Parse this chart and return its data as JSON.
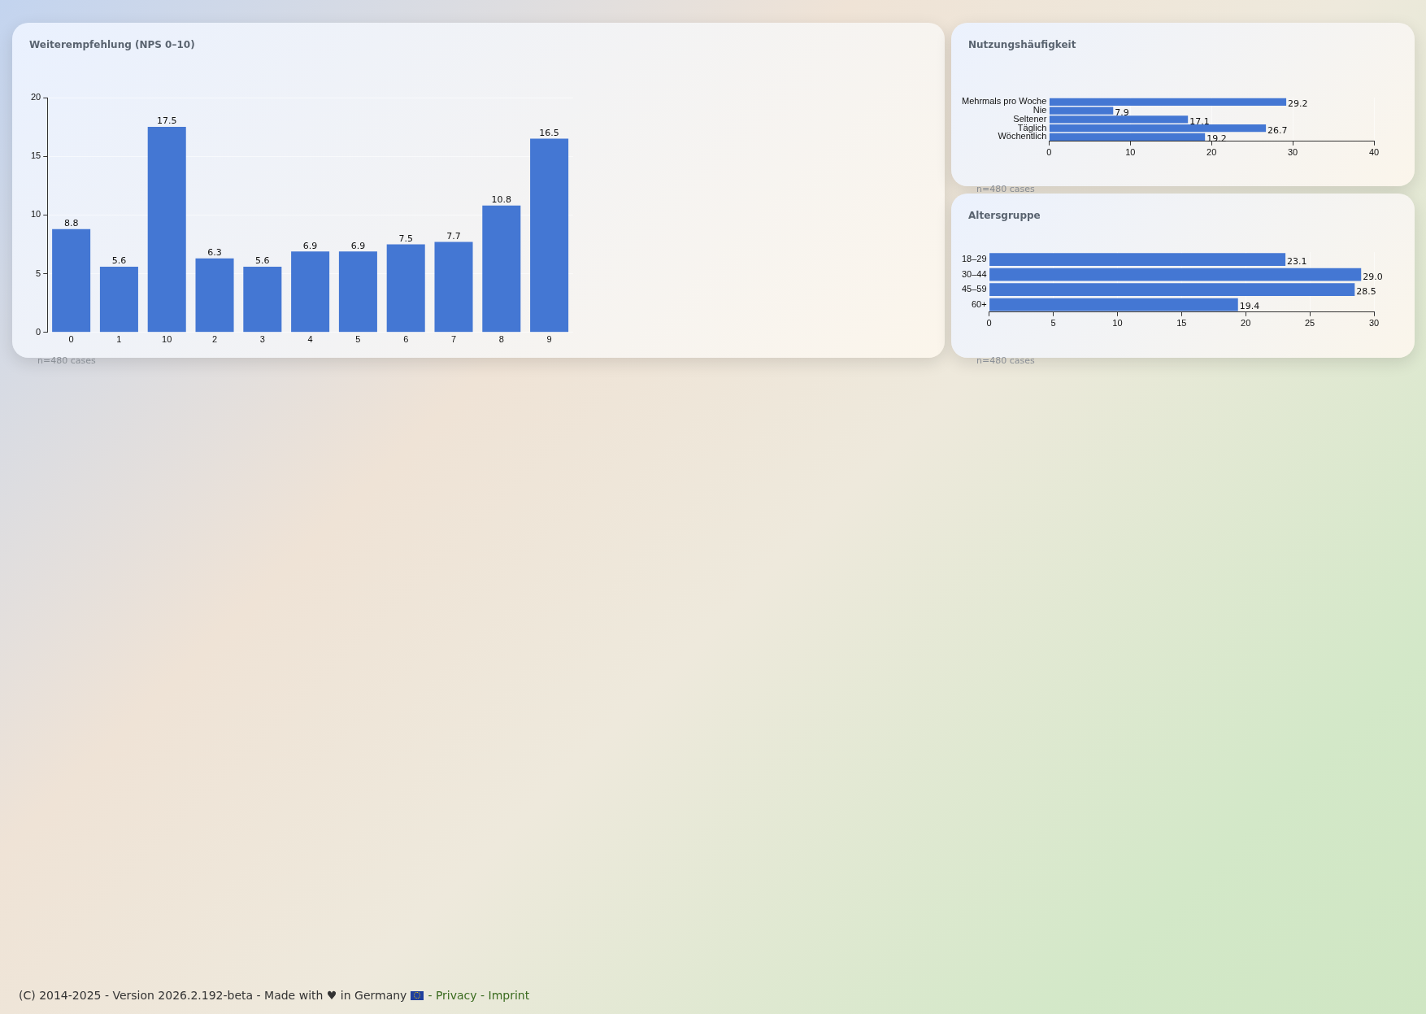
{
  "chart_data": [
    {
      "type": "bar",
      "title": "Weiterempfehlung (NPS 0–10)",
      "categories": [
        "0",
        "1",
        "10",
        "2",
        "3",
        "4",
        "5",
        "6",
        "7",
        "8",
        "9"
      ],
      "values": [
        8.8,
        5.6,
        17.5,
        6.3,
        5.6,
        6.9,
        6.9,
        7.5,
        7.7,
        10.8,
        16.5
      ],
      "color": "#4477d3",
      "ylim": [
        0,
        20
      ],
      "yticks": [
        0,
        5,
        10,
        15,
        20
      ],
      "grid": "y",
      "data_labels": true,
      "annotations": [
        "n=480 cases",
        "(C) 2014-2025 - Version 2026.2.192-beta - Made with ♥ in Germany",
        "- Privacy - Imprint"
      ]
    },
    {
      "type": "bar",
      "orientation": "horizontal",
      "title": "Nutzungshäufigkeit",
      "categories": [
        "Mehrmals pro Woche",
        "Nie",
        "Seltener",
        "Täglich",
        "Wöchentlich"
      ],
      "values": [
        29.2,
        7.9,
        17.1,
        26.7,
        19.2
      ],
      "color": "#4477d3",
      "xlim": [
        0,
        40
      ],
      "xticks": [
        0,
        10,
        20,
        30,
        40
      ],
      "grid": "x",
      "data_labels": true,
      "annotations": [
        "n=480 cases"
      ]
    },
    {
      "type": "bar",
      "orientation": "horizontal",
      "title": "Altersgruppe",
      "categories": [
        "18–29",
        "30–44",
        "45–59",
        "60+"
      ],
      "values": [
        23.1,
        29.0,
        28.5,
        19.4
      ],
      "value_labels": [
        "23.1",
        "29.0",
        "28.5",
        "19.4"
      ],
      "color": "#4477d3",
      "xlim": [
        0,
        30
      ],
      "xticks": [
        0,
        5,
        10,
        15,
        20,
        25,
        30
      ],
      "grid": "x",
      "annotations": [
        "n=480 cases"
      ]
    }
  ]
}
